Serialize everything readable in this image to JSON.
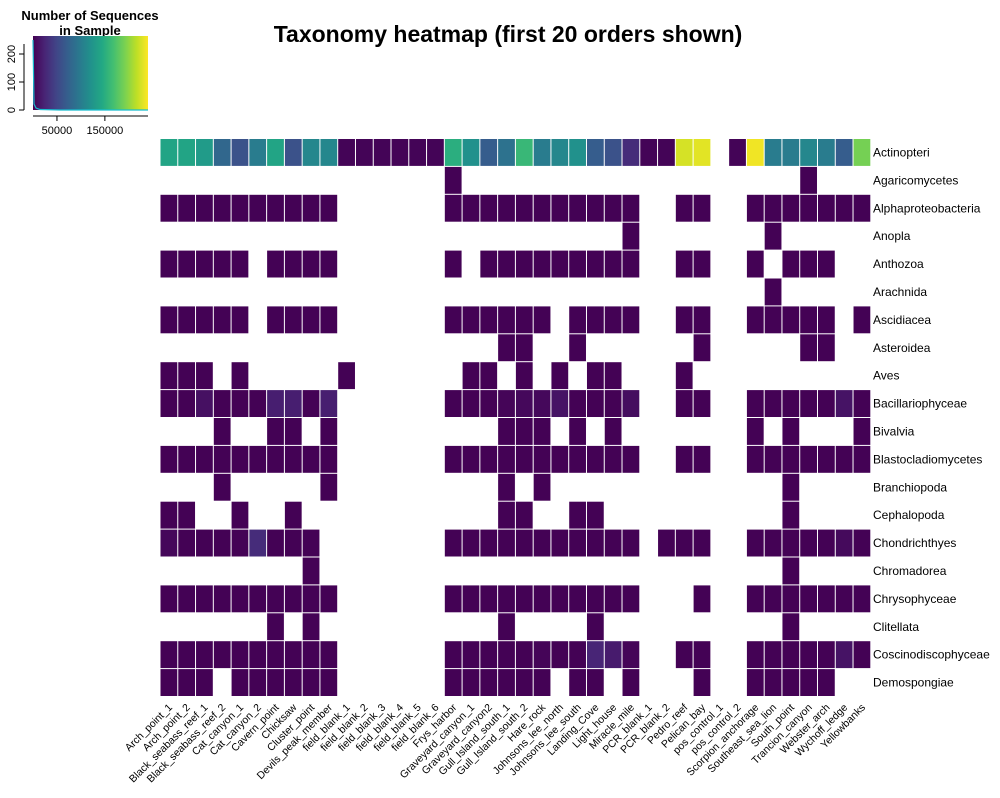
{
  "chart_data": {
    "type": "heatmap",
    "title": "Taxonomy heatmap (first 20 orders shown)",
    "legend": {
      "title_lines": [
        "Number of Sequences",
        "in Sample"
      ],
      "density_axis_ticks": [
        "0",
        "100",
        "200"
      ],
      "value_axis_ticks": [
        "50000",
        "150000"
      ],
      "value_axis_tick_values": [
        50000,
        150000
      ],
      "value_range": [
        0,
        240000
      ],
      "colormap": "viridis",
      "placement": "top-left"
    },
    "samples": [
      "Arch_point_1",
      "Arch_point_2",
      "Black_seabass_reef_1",
      "Black_seabass_reef_2",
      "Cat_canyon_1",
      "Cat_canyon_2",
      "Cavern_point",
      "Chicksaw",
      "Cluster_point",
      "Devils_peak_member",
      "field_blank_1",
      "field_blank_2",
      "field_blank_3",
      "field_blank_4",
      "field_blank_5",
      "field_blank_6",
      "Frys_harbor",
      "Graveyard_canyon_1",
      "Graveyard_canyon2",
      "Gull_Island_south_1",
      "Gull_Island_south_2",
      "Hare_rock",
      "Johnsons_lee_north",
      "Johnsons_lee_south",
      "Landing_Cove",
      "Light_house",
      "Miracle_mile",
      "PCR_blank_1",
      "PCR_blank_2",
      "Pedro_reef",
      "Pelican_bay",
      "pos_control_1",
      "pos_control_2",
      "Scorpion_anchorage",
      "Southeast_sea_lion",
      "South_point",
      "Trancion_canyon",
      "Webster_arch",
      "Wychoff_ledge",
      "Yellowbanks"
    ],
    "orders": [
      "Actinopteri",
      "Agaricomycetes",
      "Alphaproteobacteria",
      "Anopla",
      "Anthozoa",
      "Arachnida",
      "Ascidiacea",
      "Asteroidea",
      "Aves",
      "Bacillariophyceae",
      "Bivalvia",
      "Blastocladiomycetes",
      "Branchiopoda",
      "Cephalopoda",
      "Chondrichthyes",
      "Chromadorea",
      "Chrysophyceae",
      "Clitellata",
      "Coscinodiscophyceae",
      "Demospongiae"
    ],
    "values": [
      [
        140000,
        140000,
        130000,
        80000,
        60000,
        100000,
        140000,
        60000,
        110000,
        110000,
        2000,
        2000,
        2000,
        2000,
        2000,
        2000,
        150000,
        120000,
        70000,
        90000,
        160000,
        100000,
        110000,
        120000,
        70000,
        60000,
        30000,
        2000,
        2000,
        225000,
        230000,
        null,
        2000,
        235000,
        100000,
        100000,
        110000,
        100000,
        70000,
        190000
      ],
      [
        null,
        null,
        null,
        null,
        null,
        null,
        null,
        null,
        null,
        null,
        null,
        null,
        null,
        null,
        null,
        null,
        500,
        null,
        null,
        null,
        null,
        null,
        null,
        null,
        null,
        null,
        null,
        null,
        null,
        null,
        null,
        null,
        null,
        null,
        null,
        null,
        500,
        null,
        null,
        null
      ],
      [
        1000,
        1000,
        1000,
        1000,
        1000,
        1000,
        1000,
        1000,
        1000,
        1000,
        null,
        null,
        null,
        null,
        null,
        null,
        1000,
        1000,
        1000,
        1000,
        1000,
        1000,
        1000,
        1000,
        1000,
        1000,
        1000,
        null,
        null,
        1000,
        1000,
        null,
        null,
        1000,
        1000,
        1000,
        1000,
        1000,
        1000,
        1000
      ],
      [
        null,
        null,
        null,
        null,
        null,
        null,
        null,
        null,
        null,
        null,
        null,
        null,
        null,
        null,
        null,
        null,
        null,
        null,
        null,
        null,
        null,
        null,
        null,
        null,
        null,
        null,
        500,
        null,
        null,
        null,
        null,
        null,
        null,
        null,
        500,
        null,
        null,
        null,
        null,
        null
      ],
      [
        1000,
        1000,
        1000,
        1000,
        1000,
        null,
        1000,
        1000,
        1000,
        1000,
        null,
        null,
        null,
        null,
        null,
        null,
        1000,
        null,
        1000,
        1000,
        1000,
        1000,
        1000,
        1000,
        1000,
        1000,
        1000,
        null,
        null,
        1000,
        1000,
        null,
        null,
        1000,
        null,
        1000,
        1000,
        1000,
        null,
        null
      ],
      [
        null,
        null,
        null,
        null,
        null,
        null,
        null,
        null,
        null,
        null,
        null,
        null,
        null,
        null,
        null,
        null,
        null,
        null,
        null,
        null,
        null,
        null,
        null,
        null,
        null,
        null,
        null,
        null,
        null,
        null,
        null,
        null,
        null,
        null,
        500,
        null,
        null,
        null,
        null,
        null
      ],
      [
        1000,
        1000,
        1000,
        1000,
        1000,
        null,
        1000,
        1000,
        1000,
        1000,
        null,
        null,
        null,
        null,
        null,
        null,
        1000,
        1000,
        1000,
        1000,
        1000,
        1000,
        null,
        1000,
        1000,
        1000,
        1000,
        null,
        null,
        1000,
        1000,
        null,
        null,
        1000,
        1000,
        1000,
        1000,
        1000,
        null,
        1000
      ],
      [
        null,
        null,
        null,
        null,
        null,
        null,
        null,
        null,
        null,
        null,
        null,
        null,
        null,
        null,
        null,
        null,
        null,
        null,
        null,
        1000,
        1000,
        null,
        null,
        1000,
        null,
        null,
        null,
        null,
        null,
        null,
        1000,
        null,
        null,
        null,
        null,
        null,
        1000,
        1000,
        null,
        null
      ],
      [
        1000,
        1000,
        1000,
        null,
        1000,
        null,
        null,
        null,
        null,
        null,
        1000,
        null,
        null,
        null,
        null,
        null,
        null,
        1000,
        1000,
        null,
        1000,
        null,
        1000,
        null,
        1000,
        1000,
        null,
        null,
        null,
        1000,
        null,
        null,
        null,
        null,
        null,
        null,
        null,
        null,
        null,
        null
      ],
      [
        1000,
        1000,
        10000,
        1000,
        1000,
        1000,
        20000,
        20000,
        1000,
        20000,
        null,
        null,
        null,
        null,
        null,
        null,
        1000,
        1000,
        1000,
        3000,
        5000,
        5000,
        12000,
        1000,
        1000,
        1000,
        8000,
        null,
        null,
        1000,
        1000,
        null,
        null,
        1000,
        1000,
        1000,
        1000,
        1000,
        12000,
        1000
      ],
      [
        null,
        null,
        null,
        1000,
        null,
        null,
        1000,
        1000,
        null,
        1000,
        null,
        null,
        null,
        null,
        null,
        null,
        null,
        null,
        null,
        1000,
        1000,
        1000,
        null,
        1000,
        null,
        1000,
        null,
        null,
        null,
        null,
        null,
        null,
        null,
        1000,
        null,
        1000,
        null,
        null,
        null,
        1000
      ],
      [
        1000,
        1000,
        1000,
        1000,
        1000,
        1000,
        1000,
        1000,
        1000,
        1000,
        null,
        null,
        null,
        null,
        null,
        null,
        1000,
        1000,
        1000,
        1000,
        1000,
        1000,
        1000,
        1000,
        1000,
        1000,
        1000,
        null,
        null,
        1000,
        1000,
        null,
        null,
        1000,
        1000,
        1000,
        1000,
        1000,
        1000,
        1000
      ],
      [
        null,
        null,
        null,
        1000,
        null,
        null,
        null,
        null,
        null,
        1000,
        null,
        null,
        null,
        null,
        null,
        null,
        null,
        null,
        null,
        1000,
        null,
        1000,
        null,
        null,
        null,
        null,
        null,
        null,
        null,
        null,
        null,
        null,
        null,
        null,
        null,
        1000,
        null,
        null,
        null,
        null
      ],
      [
        1000,
        1000,
        null,
        null,
        1000,
        null,
        null,
        1000,
        null,
        null,
        null,
        null,
        null,
        null,
        null,
        null,
        null,
        null,
        null,
        1000,
        1000,
        null,
        null,
        1000,
        1000,
        null,
        null,
        null,
        null,
        null,
        null,
        null,
        null,
        null,
        null,
        1000,
        null,
        null,
        null,
        null
      ],
      [
        4000,
        1000,
        1000,
        1000,
        1000,
        30000,
        1000,
        1000,
        1000,
        null,
        null,
        null,
        null,
        null,
        null,
        null,
        1000,
        1000,
        1000,
        1000,
        1000,
        1000,
        1000,
        1000,
        1000,
        1000,
        1000,
        null,
        1000,
        1000,
        1000,
        null,
        null,
        1000,
        1000,
        1000,
        1000,
        1000,
        6000,
        1000
      ],
      [
        null,
        null,
        null,
        null,
        null,
        null,
        null,
        null,
        1000,
        null,
        null,
        null,
        null,
        null,
        null,
        null,
        null,
        null,
        null,
        null,
        null,
        null,
        null,
        null,
        null,
        null,
        null,
        null,
        null,
        null,
        null,
        null,
        null,
        null,
        null,
        1000,
        null,
        null,
        null,
        null
      ],
      [
        1000,
        1000,
        1000,
        1000,
        1000,
        1000,
        1000,
        1000,
        1000,
        1000,
        null,
        null,
        null,
        null,
        null,
        null,
        1000,
        1000,
        1000,
        1000,
        1000,
        1000,
        1000,
        1000,
        1000,
        1000,
        1000,
        null,
        null,
        null,
        1000,
        null,
        null,
        1000,
        1000,
        1000,
        1000,
        1000,
        1000,
        1000
      ],
      [
        null,
        null,
        null,
        null,
        null,
        null,
        1000,
        null,
        1000,
        null,
        null,
        null,
        null,
        null,
        null,
        null,
        null,
        null,
        null,
        1000,
        null,
        null,
        null,
        null,
        1000,
        null,
        null,
        null,
        null,
        null,
        null,
        null,
        null,
        null,
        null,
        1000,
        null,
        null,
        null,
        null
      ],
      [
        1000,
        1000,
        1000,
        1000,
        1000,
        1000,
        1000,
        1000,
        1000,
        1000,
        null,
        null,
        null,
        null,
        null,
        null,
        1000,
        1000,
        1000,
        1000,
        1000,
        3000,
        1000,
        1000,
        25000,
        18000,
        3000,
        null,
        null,
        1000,
        1000,
        null,
        null,
        1000,
        1000,
        1000,
        1000,
        1000,
        12000,
        1000
      ],
      [
        1000,
        1000,
        1000,
        null,
        1000,
        1000,
        1000,
        1000,
        1000,
        1000,
        null,
        null,
        null,
        null,
        null,
        null,
        1000,
        1000,
        1000,
        1000,
        1000,
        1000,
        null,
        1000,
        1000,
        null,
        1000,
        null,
        null,
        null,
        1000,
        null,
        null,
        1000,
        1000,
        1000,
        1000,
        1000,
        null,
        null
      ]
    ]
  }
}
